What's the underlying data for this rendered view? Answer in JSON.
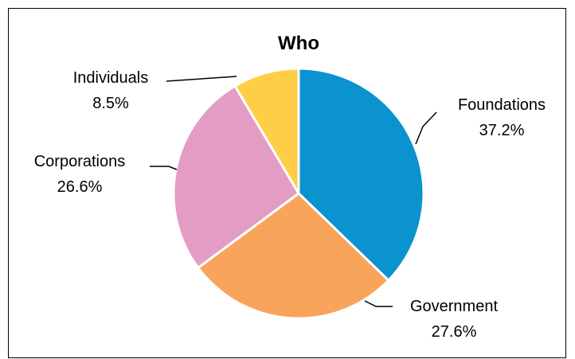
{
  "chart_data": {
    "type": "pie",
    "title": "Who",
    "slices": [
      {
        "name": "Foundations",
        "value": 37.2,
        "label": "37.2%",
        "color": "#0A93CF"
      },
      {
        "name": "Government",
        "value": 27.6,
        "label": "27.6%",
        "color": "#F9A45B"
      },
      {
        "name": "Corporations",
        "value": 26.6,
        "label": "26.6%",
        "color": "#E39CC4"
      },
      {
        "name": "Individuals",
        "value": 8.5,
        "label": "8.5%",
        "color": "#FFCE47"
      }
    ],
    "start_angle": "12 o'clock",
    "direction": "clockwise",
    "legend": "none (labels beside slices with leader lines)"
  }
}
